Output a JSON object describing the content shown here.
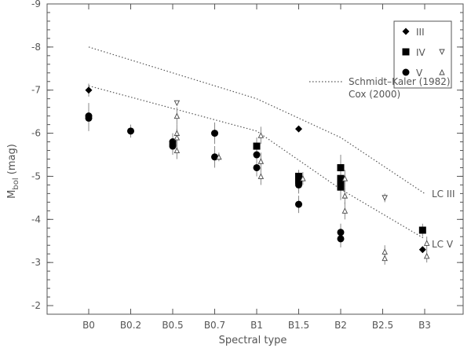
{
  "chart_data": {
    "type": "scatter",
    "xlabel": "Spectral type",
    "ylabel_main": "M",
    "ylabel_sub": "bol",
    "ylabel_unit": " (mag)",
    "categories": [
      "B0",
      "B0.2",
      "B0.5",
      "B0.7",
      "B1",
      "B1.5",
      "B2",
      "B2.5",
      "B3"
    ],
    "x_positions": [
      0,
      1,
      2,
      3,
      4,
      5,
      6,
      7,
      8
    ],
    "ylim": [
      -1.8,
      -9
    ],
    "yticks": [
      -9,
      -8,
      -7,
      -6,
      -5,
      -4,
      -3,
      -2
    ],
    "ytick_labels": [
      "-9",
      "-8",
      "-7",
      "-6",
      "-5",
      "-4",
      "-3",
      "-2"
    ],
    "legend": {
      "placement": "top-right",
      "rows": [
        {
          "marker": "diamond",
          "label": "III",
          "extra": ""
        },
        {
          "marker": "square",
          "label": "IV",
          "extra": "down-triangle"
        },
        {
          "marker": "circle",
          "label": "V",
          "extra": "up-triangle"
        }
      ]
    },
    "lines_legend": [
      {
        "style": "dotted",
        "label": "Schmidt–Kaler (1982)"
      },
      {
        "style": "none",
        "label": "Cox (2000)"
      }
    ],
    "reference_lines": [
      {
        "label": "LC III",
        "x": [
          0,
          4,
          6,
          8
        ],
        "y": [
          -8.0,
          -6.8,
          -5.9,
          -4.6
        ]
      },
      {
        "label": "LC V",
        "x": [
          0,
          4,
          6,
          8
        ],
        "y": [
          -7.1,
          -6.05,
          -4.7,
          -3.55
        ]
      }
    ],
    "series": [
      {
        "name": "III",
        "marker": "diamond",
        "points": [
          {
            "x": 0,
            "y": -7.0,
            "err": 0.15
          },
          {
            "x": 5,
            "y": -6.1,
            "err": 0
          },
          {
            "x": 7.95,
            "y": -3.3,
            "err": 0
          }
        ]
      },
      {
        "name": "IV",
        "marker": "square",
        "points": [
          {
            "x": 4,
            "y": -5.7,
            "err": 0.2
          },
          {
            "x": 5,
            "y": -5.0,
            "err": 0.15
          },
          {
            "x": 5,
            "y": -4.9,
            "err": 0.15
          },
          {
            "x": 6,
            "y": -5.2,
            "err": 0.3
          },
          {
            "x": 6,
            "y": -4.95,
            "err": 0.3
          },
          {
            "x": 6,
            "y": -4.85,
            "err": 0.3
          },
          {
            "x": 6,
            "y": -4.75,
            "err": 0.3
          },
          {
            "x": 7.95,
            "y": -3.75,
            "err": 0.15
          }
        ]
      },
      {
        "name": "V",
        "marker": "circle",
        "points": [
          {
            "x": 0,
            "y": -6.4,
            "err": 0.3
          },
          {
            "x": 0,
            "y": -6.35,
            "err": 0.3
          },
          {
            "x": 1,
            "y": -6.05,
            "err": 0.15
          },
          {
            "x": 2,
            "y": -5.8,
            "err": 0.2
          },
          {
            "x": 2,
            "y": -5.75,
            "err": 0.2
          },
          {
            "x": 2,
            "y": -5.7,
            "err": 0.2
          },
          {
            "x": 3,
            "y": -6.0,
            "err": 0.25
          },
          {
            "x": 3,
            "y": -5.45,
            "err": 0.25
          },
          {
            "x": 4,
            "y": -5.5,
            "err": 0.2
          },
          {
            "x": 4,
            "y": -5.2,
            "err": 0.2
          },
          {
            "x": 5,
            "y": -4.9,
            "err": 0.2
          },
          {
            "x": 5,
            "y": -4.8,
            "err": 0.2
          },
          {
            "x": 5,
            "y": -4.35,
            "err": 0.2
          },
          {
            "x": 6,
            "y": -3.7,
            "err": 0.2
          },
          {
            "x": 6,
            "y": -3.55,
            "err": 0.2
          }
        ]
      },
      {
        "name": "IV (open)",
        "marker": "down-triangle",
        "points": [
          {
            "x": 2.1,
            "y": -6.7,
            "err": 0
          },
          {
            "x": 7.05,
            "y": -4.5,
            "err": 0.1
          }
        ]
      },
      {
        "name": "V (open)",
        "marker": "up-triangle",
        "points": [
          {
            "x": 2.1,
            "y": -6.4,
            "err": 0.2
          },
          {
            "x": 2.1,
            "y": -6.0,
            "err": 0.2
          },
          {
            "x": 2.1,
            "y": -5.9,
            "err": 0.2
          },
          {
            "x": 2.1,
            "y": -5.6,
            "err": 0.2
          },
          {
            "x": 3.1,
            "y": -5.45,
            "err": 0.1
          },
          {
            "x": 4.1,
            "y": -5.95,
            "err": 0.2
          },
          {
            "x": 4.1,
            "y": -5.35,
            "err": 0.2
          },
          {
            "x": 4.1,
            "y": -5.0,
            "err": 0.2
          },
          {
            "x": 5.1,
            "y": -4.95,
            "err": 0.15
          },
          {
            "x": 6.1,
            "y": -4.95,
            "err": 0.2
          },
          {
            "x": 6.1,
            "y": -4.55,
            "err": 0.2
          },
          {
            "x": 6.1,
            "y": -4.2,
            "err": 0.2
          },
          {
            "x": 7.05,
            "y": -3.25,
            "err": 0.15
          },
          {
            "x": 7.05,
            "y": -3.1,
            "err": 0.15
          },
          {
            "x": 8.05,
            "y": -3.45,
            "err": 0.15
          },
          {
            "x": 8.05,
            "y": -3.15,
            "err": 0.15
          }
        ]
      }
    ],
    "colors": {
      "axis": "#555555",
      "marker": "#000000",
      "line": "#555555",
      "errbar": "#888888"
    }
  }
}
